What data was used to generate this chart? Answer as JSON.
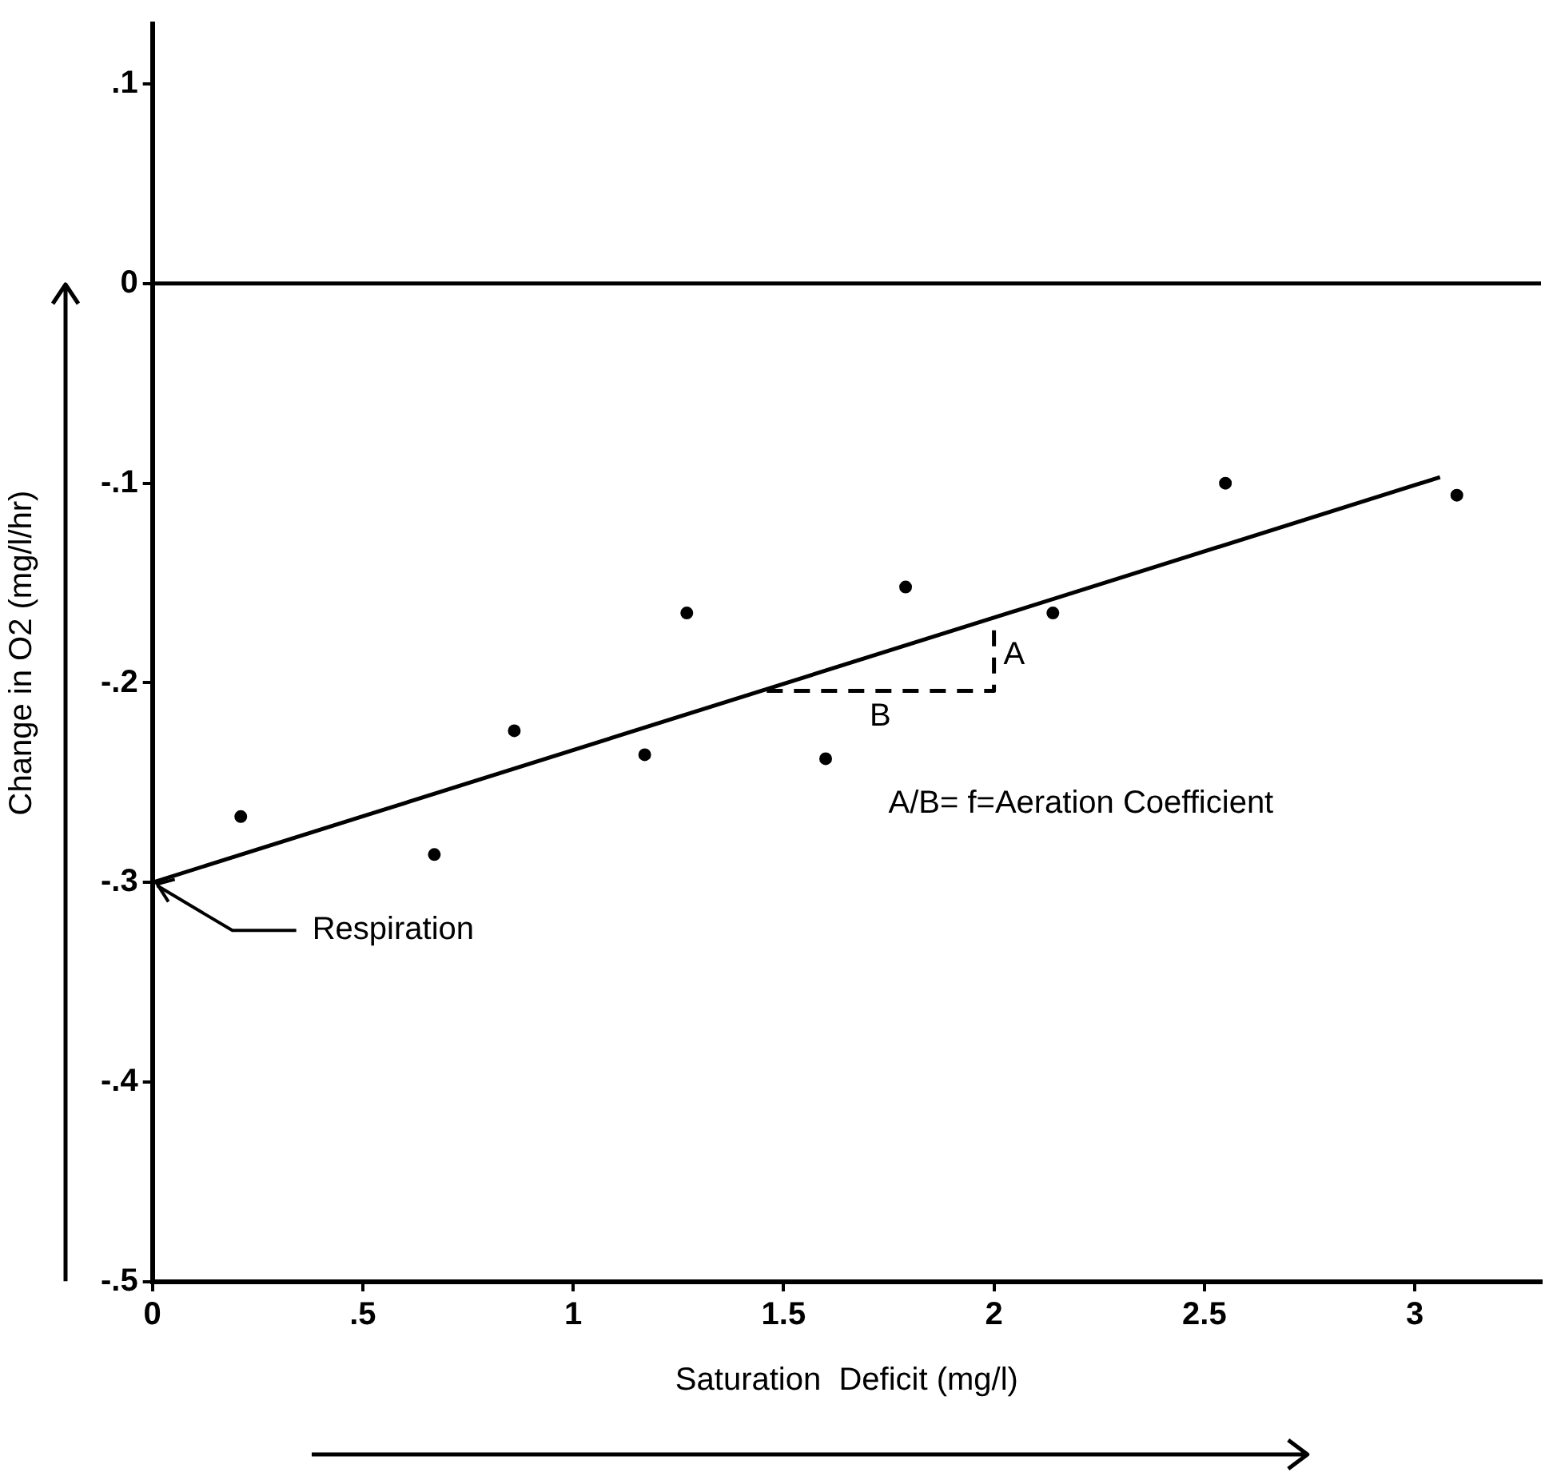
{
  "chart_data": {
    "type": "scatter",
    "xlabel": "Saturation  Deficit (mg/l)",
    "ylabel": "Change in O2 (mg/l/hr)",
    "xlim": [
      0,
      3.3
    ],
    "ylim": [
      -0.5,
      0.13
    ],
    "xticks": [
      0,
      {
        "value": 0.5,
        "label": ".5"
      },
      1,
      1.5,
      2,
      2.5,
      3
    ],
    "yticks": [
      {
        "value": -0.5,
        "label": "-.5"
      },
      {
        "value": -0.4,
        "label": "-.4"
      },
      {
        "value": -0.3,
        "label": "-.3"
      },
      {
        "value": -0.2,
        "label": "-.2"
      },
      {
        "value": -0.1,
        "label": "-.1"
      },
      0,
      {
        "value": 0.1,
        "label": ".1"
      }
    ],
    "grid": false,
    "legend": false,
    "series": [
      {
        "marker": "circle",
        "color": "#000000",
        "x": [
          0.21,
          0.67,
          0.86,
          1.17,
          1.27,
          1.6,
          1.79,
          2.14,
          2.55,
          3.1
        ],
        "values": [
          -0.267,
          -0.286,
          -0.224,
          -0.236,
          -0.165,
          -0.238,
          -0.152,
          -0.165,
          -0.1,
          -0.106
        ]
      },
      {
        "type": "line",
        "marker": "none",
        "color": "#000000",
        "line_style": "solid",
        "x": [
          0,
          3.06
        ],
        "values": [
          -0.3,
          -0.097
        ]
      },
      {
        "type": "line",
        "marker": "none",
        "color": "#000000",
        "line_style": "dashed",
        "x": [
          1.46,
          2.0,
          2.0
        ],
        "values": [
          -0.204,
          -0.204,
          -0.168
        ]
      }
    ],
    "ref_lines": [
      {
        "axis": "y",
        "value": 0,
        "color": "#000000"
      }
    ],
    "annotations": [
      {
        "text": "Respiration",
        "x": 0,
        "y": -0.3
      },
      {
        "text": "A",
        "x": 2.0,
        "y": -0.186
      },
      {
        "text": "B",
        "x": 1.73,
        "y": -0.204
      },
      "A/B= f=Aeration Coefficient"
    ]
  }
}
